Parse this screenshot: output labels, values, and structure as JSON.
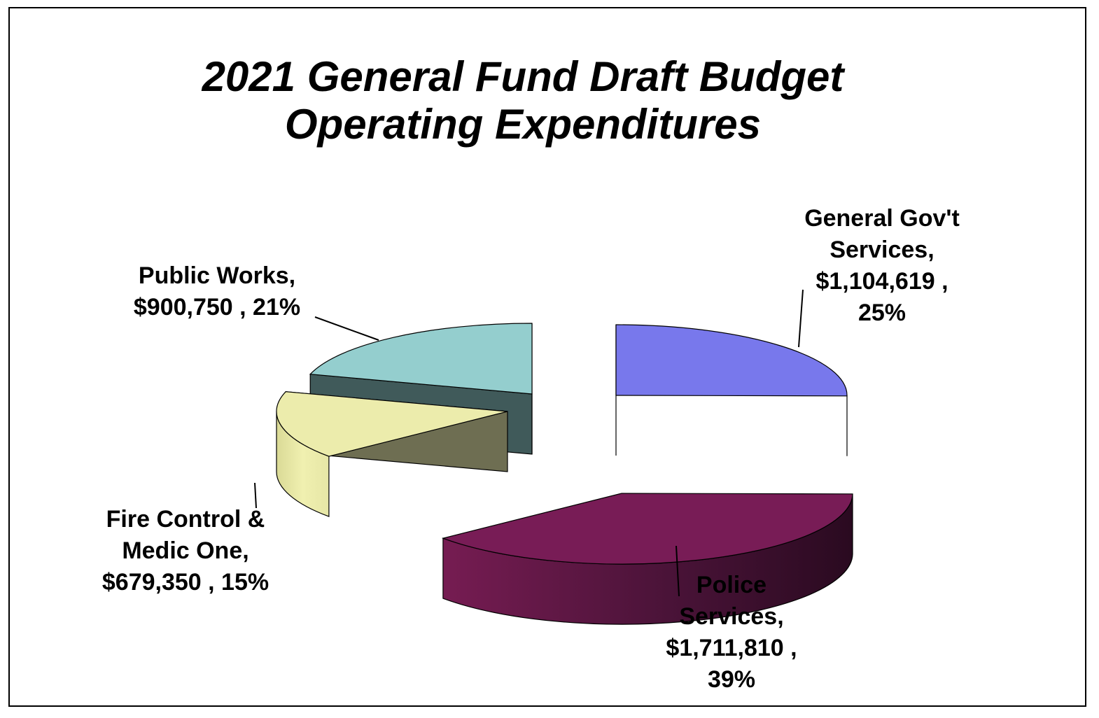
{
  "chart_data": {
    "type": "pie",
    "title": "2021 General Fund Draft Budget",
    "subtitle": "Operating Expenditures",
    "slices": [
      {
        "name": "General Gov't Services",
        "value": 1104619,
        "percent": 25,
        "color": "#7878ec",
        "label_lines": [
          "General Gov't",
          "Services,",
          "$1,104,619 ,",
          "25%"
        ]
      },
      {
        "name": "Police Services",
        "value": 1711810,
        "percent": 39,
        "color": "#781c56",
        "label_lines": [
          "Police",
          "Services,",
          "$1,711,810 ,",
          "39%"
        ]
      },
      {
        "name": "Fire Control & Medic One",
        "value": 679350,
        "percent": 15,
        "color": "#ececac",
        "label_lines": [
          "Fire Control &",
          "Medic One,",
          "$679,350 , 15%"
        ]
      },
      {
        "name": "Public Works",
        "value": 900750,
        "percent": 21,
        "color": "#94cece",
        "label_lines": [
          "Public Works,",
          "$900,750 , 21%"
        ]
      }
    ]
  }
}
